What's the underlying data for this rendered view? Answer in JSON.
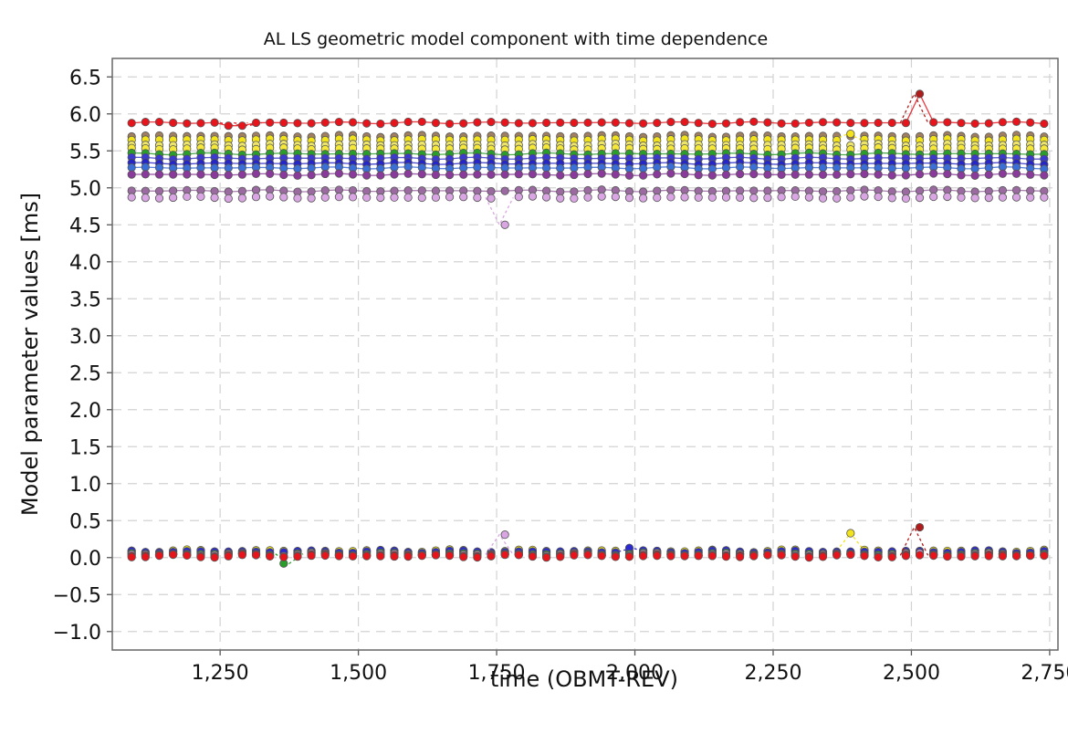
{
  "chart_data": {
    "type": "scatter",
    "title": "AL LS geometric model component with time dependence",
    "xlabel": "time (OBMT-REV)",
    "ylabel": "Model parameter values [ms]",
    "xlim": [
      1055,
      2765
    ],
    "ylim": [
      -1.25,
      6.75
    ],
    "x_ticks": [
      1250,
      1500,
      1750,
      2000,
      2250,
      2500,
      2750
    ],
    "x_tick_labels": [
      "1,250",
      "1,500",
      "1,750",
      "2,000",
      "2,250",
      "2,500",
      "2,750"
    ],
    "y_ticks": [
      -1.0,
      -0.5,
      0.0,
      0.5,
      1.0,
      1.5,
      2.0,
      2.5,
      3.0,
      3.5,
      4.0,
      4.5,
      5.0,
      5.5,
      6.0,
      6.5
    ],
    "y_tick_labels": [
      "−1.0",
      "−0.5",
      "0.0",
      "0.5",
      "1.0",
      "1.5",
      "2.0",
      "2.5",
      "3.0",
      "3.5",
      "4.0",
      "4.5",
      "5.0",
      "5.5",
      "6.0",
      "6.5"
    ],
    "grid": true,
    "legend": "none",
    "x_start": 1090,
    "x_end": 2740,
    "x_step": 25,
    "series": [
      {
        "color": "#e8141c",
        "base": 5.88,
        "line": true,
        "outliers": [
          [
            2505,
            6.27,
            "#b01c1c"
          ],
          [
            1300,
            5.84,
            "#e8141c"
          ],
          [
            1275,
            5.84,
            "#e8141c"
          ]
        ]
      },
      {
        "color": "#a08060",
        "base": 5.7,
        "line": false,
        "outliers": []
      },
      {
        "color": "#f2e31b",
        "base": 5.65,
        "line": false,
        "outliers": [
          [
            2385,
            5.73,
            "#f2e31b"
          ]
        ]
      },
      {
        "color": "#ece56a",
        "base": 5.58,
        "line": false,
        "outliers": []
      },
      {
        "color": "#f6e838",
        "base": 5.53,
        "line": false,
        "outliers": []
      },
      {
        "color": "#2a9e2a",
        "base": 5.46,
        "line": true,
        "outliers": []
      },
      {
        "color": "#3a3ad0",
        "base": 5.4,
        "line": true,
        "outliers": []
      },
      {
        "color": "#2626c8",
        "base": 5.33,
        "line": true,
        "outliers": []
      },
      {
        "color": "#3b6fd8",
        "base": 5.27,
        "line": true,
        "outliers": []
      },
      {
        "color": "#8a3a9a",
        "base": 5.18,
        "line": true,
        "outliers": []
      },
      {
        "color": "#9a6aa0",
        "base": 4.96,
        "line": true,
        "outliers": []
      },
      {
        "color": "#d9a6e3",
        "base": 4.87,
        "line": false,
        "outliers": [
          [
            1755,
            4.5,
            "#d9a6e3"
          ]
        ]
      }
    ],
    "low_series": [
      {
        "color": "#f2e31b",
        "base": 0.09,
        "outliers": [
          [
            2390,
            0.33,
            "#f2e31b"
          ]
        ]
      },
      {
        "color": "#8c8c8c",
        "base": 0.06,
        "outliers": []
      },
      {
        "color": "#2a2ad0",
        "base": 0.08,
        "outliers": [
          [
            1995,
            0.13,
            "#2a2ad0"
          ]
        ]
      },
      {
        "color": "#2a9e2a",
        "base": 0.05,
        "outliers": [
          [
            1375,
            -0.08,
            "#2a9e2a"
          ]
        ]
      },
      {
        "color": "#d9a6e3",
        "base": 0.04,
        "outliers": [
          [
            1755,
            0.31,
            "#d9a6e3"
          ]
        ]
      },
      {
        "color": "#b01c1c",
        "base": 0.03,
        "outliers": [
          [
            2505,
            0.41,
            "#b01c1c"
          ]
        ]
      },
      {
        "color": "#e8141c",
        "base": 0.02,
        "outliers": []
      }
    ]
  }
}
